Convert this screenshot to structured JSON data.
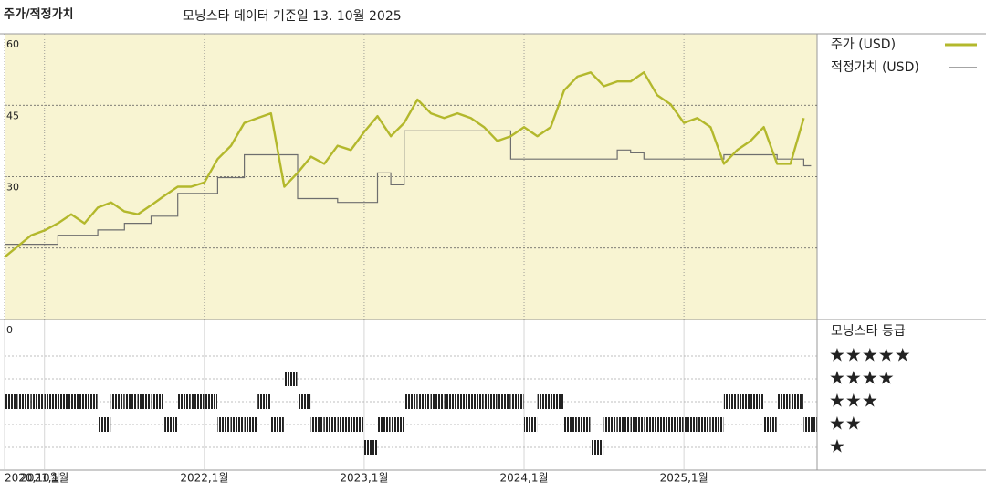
{
  "chart_data": {
    "type": "line",
    "title": "주가/적정가치",
    "subtitle": "모닝스타 데이터 기준일 13. 10월 2025",
    "x": [
      "2020-10",
      "2020-11",
      "2020-12",
      "2021-01",
      "2021-02",
      "2021-03",
      "2021-04",
      "2021-05",
      "2021-06",
      "2021-07",
      "2021-08",
      "2021-09",
      "2021-10",
      "2021-11",
      "2021-12",
      "2022-01",
      "2022-02",
      "2022-03",
      "2022-04",
      "2022-05",
      "2022-06",
      "2022-07",
      "2022-08",
      "2022-09",
      "2022-10",
      "2022-11",
      "2022-12",
      "2023-01",
      "2023-02",
      "2023-03",
      "2023-04",
      "2023-05",
      "2023-06",
      "2023-07",
      "2023-08",
      "2023-09",
      "2023-10",
      "2023-11",
      "2023-12",
      "2024-01",
      "2024-02",
      "2024-03",
      "2024-04",
      "2024-05",
      "2024-06",
      "2024-07",
      "2024-08",
      "2024-09",
      "2024-10",
      "2024-11",
      "2024-12",
      "2025-01",
      "2025-02",
      "2025-03",
      "2025-04",
      "2025-05",
      "2025-06",
      "2025-07",
      "2025-08",
      "2025-09",
      "2025-10"
    ],
    "xlim": [
      "2020-10",
      "2025-11"
    ],
    "xticks": [
      {
        "value": "2020-10",
        "label": "2020,10월"
      },
      {
        "value": "2021-01",
        "label": "2021,1월"
      },
      {
        "value": "2022-01",
        "label": "2022,1월"
      },
      {
        "value": "2023-01",
        "label": "2023,1월"
      },
      {
        "value": "2024-01",
        "label": "2024,1월"
      },
      {
        "value": "2025-01",
        "label": "2025,1월"
      }
    ],
    "ylim": [
      0,
      60
    ],
    "yticks": [
      0,
      30,
      45,
      60
    ],
    "gridlines": [
      15,
      30,
      45
    ],
    "series": [
      {
        "name": "주가 (USD)",
        "color": "#b3b82c",
        "values": [
          13.1,
          15.4,
          17.7,
          18.7,
          20.2,
          22.1,
          20.2,
          23.5,
          24.6,
          22.7,
          22.1,
          24.0,
          26.0,
          27.9,
          27.9,
          28.8,
          33.7,
          36.5,
          41.3,
          42.3,
          43.3,
          27.9,
          30.8,
          34.2,
          32.7,
          36.5,
          35.6,
          39.4,
          42.7,
          38.5,
          41.3,
          46.2,
          43.3,
          42.3,
          43.3,
          42.3,
          40.4,
          37.5,
          38.5,
          40.4,
          38.5,
          40.4,
          48.1,
          51.0,
          51.9,
          49.0,
          50.0,
          50.0,
          51.9,
          47.1,
          45.2,
          41.3,
          42.3,
          40.4,
          32.7,
          35.6,
          37.5,
          40.4,
          32.7,
          32.7,
          42.3
        ]
      },
      {
        "name": "적정가치 (USD)",
        "color": "#6e6e6e",
        "values": [
          15.8,
          15.8,
          15.8,
          15.8,
          17.7,
          17.7,
          17.7,
          18.8,
          18.8,
          20.2,
          20.2,
          21.7,
          21.7,
          26.5,
          26.5,
          26.5,
          29.8,
          29.8,
          34.6,
          34.6,
          34.6,
          34.6,
          25.4,
          25.4,
          25.4,
          24.6,
          24.6,
          24.6,
          30.8,
          28.3,
          39.6,
          39.6,
          39.6,
          39.6,
          39.6,
          39.6,
          39.6,
          39.6,
          33.7,
          33.7,
          33.7,
          33.7,
          33.7,
          33.7,
          33.7,
          33.7,
          35.6,
          35.0,
          33.7,
          33.7,
          33.7,
          33.7,
          33.7,
          33.7,
          34.6,
          34.6,
          34.6,
          34.6,
          33.7,
          33.7,
          32.3
        ]
      }
    ],
    "rating": {
      "title": "모닝스타 등급",
      "levels": [
        {
          "value": 5,
          "label": "★★★★★"
        },
        {
          "value": 4,
          "label": "★★★★"
        },
        {
          "value": 3,
          "label": "★★★"
        },
        {
          "value": 2,
          "label": "★★"
        },
        {
          "value": 1,
          "label": "★"
        }
      ],
      "values": [
        3,
        3,
        3,
        3,
        3,
        3,
        3,
        2,
        3,
        3,
        3,
        3,
        2,
        3,
        3,
        3,
        2,
        2,
        2,
        3,
        2,
        4,
        3,
        2,
        2,
        2,
        2,
        1,
        2,
        2,
        3,
        3,
        3,
        3,
        3,
        3,
        3,
        3,
        3,
        2,
        3,
        3,
        2,
        2,
        1,
        2,
        2,
        2,
        2,
        2,
        2,
        2,
        2,
        2,
        3,
        3,
        3,
        2,
        3,
        3,
        2
      ]
    }
  }
}
